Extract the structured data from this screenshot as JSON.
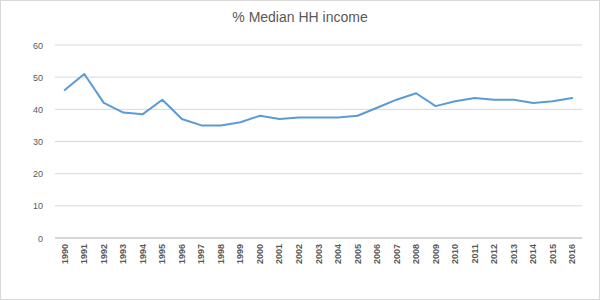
{
  "chart_data": {
    "type": "line",
    "title": "% Median HH income",
    "categories": [
      "1990",
      "1991",
      "1992",
      "1993",
      "1994",
      "1995",
      "1996",
      "1997",
      "1998",
      "1999",
      "2000",
      "2001",
      "2002",
      "2003",
      "2004",
      "2005",
      "2006",
      "2007",
      "2008",
      "2009",
      "2010",
      "2011",
      "2012",
      "2013",
      "2014",
      "2015",
      "2016"
    ],
    "values": [
      46,
      51,
      42,
      39,
      38.5,
      43,
      37,
      35,
      35,
      36,
      38,
      37,
      37.5,
      37.5,
      37.5,
      38,
      40.5,
      43,
      45,
      41,
      42.5,
      43.5,
      43,
      43,
      42,
      42.5,
      43.5
    ],
    "color": "#5b9bd5",
    "ylim": [
      0,
      60
    ],
    "yticks": [
      0,
      10,
      20,
      30,
      40,
      50,
      60
    ],
    "grid": true
  }
}
